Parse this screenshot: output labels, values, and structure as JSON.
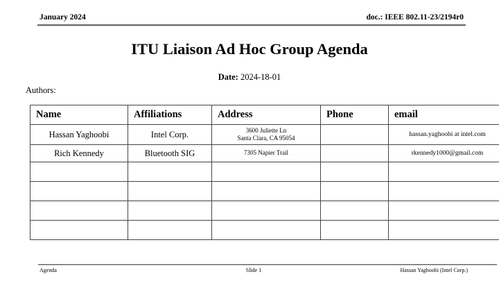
{
  "header": {
    "left": "January 2024",
    "right": "doc.: IEEE 802.11-23/2194r0"
  },
  "title": "ITU Liaison Ad Hoc Group Agenda",
  "date": {
    "label": "Date:",
    "value": "2024-18-01"
  },
  "authors_label": "Authors:",
  "table": {
    "headers": [
      "Name",
      "Affiliations",
      "Address",
      "Phone",
      "email"
    ],
    "rows": [
      {
        "name": "Hassan Yaghoobi",
        "affiliation": "Intel Corp.",
        "address_lines": [
          "3600 Juliette Ln",
          "Santa Clara,  CA  95054"
        ],
        "phone": "",
        "email": "hassan.yaghoobi at intel.com"
      },
      {
        "name": "Rich Kennedy",
        "affiliation": "Bluetooth SIG",
        "address_lines": [
          "7305 Napier Trail"
        ],
        "phone": "",
        "email": "rkennedy1000@gmail.com"
      },
      {
        "name": "",
        "affiliation": "",
        "address_lines": [],
        "phone": "",
        "email": ""
      },
      {
        "name": "",
        "affiliation": "",
        "address_lines": [],
        "phone": "",
        "email": ""
      },
      {
        "name": "",
        "affiliation": "",
        "address_lines": [],
        "phone": "",
        "email": ""
      },
      {
        "name": "",
        "affiliation": "",
        "address_lines": [],
        "phone": "",
        "email": ""
      }
    ]
  },
  "footer": {
    "left": "Agenda",
    "center": "Slide 1",
    "right": "Hassan Yaghoobi (Intel Corp.)"
  },
  "colors": {
    "text": "#000000",
    "table_border": "#454545",
    "rule": "#6e6e6e",
    "background": "#ffffff"
  }
}
